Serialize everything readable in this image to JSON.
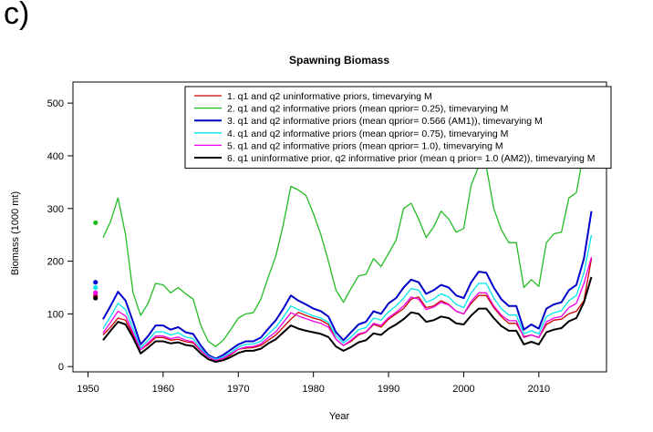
{
  "panel_label": "c)",
  "chart_data": {
    "type": "line",
    "title": "Spawning Biomass",
    "xlabel": "Year",
    "ylabel": "Biomass (1000 mt)",
    "xlim": [
      1948,
      2019
    ],
    "ylim": [
      -10,
      540
    ],
    "xticks": [
      1950,
      1960,
      1970,
      1980,
      1990,
      2000,
      2010
    ],
    "yticks": [
      0,
      100,
      200,
      300,
      400,
      500
    ],
    "grid": false,
    "legend_position": "top-right",
    "x": [
      1951,
      1952,
      1953,
      1954,
      1955,
      1956,
      1957,
      1958,
      1959,
      1960,
      1961,
      1962,
      1963,
      1964,
      1965,
      1966,
      1967,
      1968,
      1969,
      1970,
      1971,
      1972,
      1973,
      1974,
      1975,
      1976,
      1977,
      1978,
      1979,
      1980,
      1981,
      1982,
      1983,
      1984,
      1985,
      1986,
      1987,
      1988,
      1989,
      1990,
      1991,
      1992,
      1993,
      1994,
      1995,
      1996,
      1997,
      1998,
      1999,
      2000,
      2001,
      2002,
      2003,
      2004,
      2005,
      2006,
      2007,
      2008,
      2009,
      2010,
      2011,
      2012,
      2013,
      2014,
      2015,
      2016,
      2017
    ],
    "series": [
      {
        "name": "1. q1 and q2 uninformative priors, timevarying M",
        "color": "#cc0000",
        "line_width": 1.3,
        "start_point": 134,
        "values": [
          58,
          60,
          75,
          92,
          88,
          60,
          32,
          42,
          55,
          55,
          50,
          52,
          47,
          45,
          30,
          18,
          12,
          15,
          22,
          33,
          35,
          36,
          40,
          50,
          60,
          75,
          90,
          103,
          97,
          92,
          88,
          80,
          52,
          40,
          48,
          60,
          65,
          80,
          75,
          90,
          100,
          110,
          128,
          132,
          112,
          115,
          125,
          118,
          105,
          100,
          120,
          135,
          135,
          112,
          95,
          82,
          82,
          57,
          60,
          55,
          80,
          88,
          90,
          100,
          105,
          125,
          205
        ]
      },
      {
        "name": "2. q1 and q2 informative priors (mean qprior= 0.25), timevarying M",
        "color": "#22bb22",
        "line_width": 1.3,
        "start_point": 273,
        "values": [
          200,
          245,
          275,
          320,
          250,
          140,
          97,
          120,
          158,
          155,
          140,
          150,
          138,
          128,
          78,
          48,
          38,
          50,
          70,
          92,
          100,
          102,
          128,
          170,
          210,
          270,
          342,
          335,
          325,
          290,
          250,
          200,
          145,
          122,
          148,
          172,
          175,
          205,
          190,
          215,
          240,
          300,
          310,
          280,
          245,
          265,
          295,
          280,
          255,
          262,
          345,
          380,
          380,
          300,
          260,
          235,
          235,
          150,
          165,
          152,
          235,
          252,
          255,
          320,
          330,
          410,
          415
        ]
      },
      {
        "name": "3. q1 and q2 informative priors (mean qprior= 0.566 (AM1)), timevarying M",
        "color": "#0000cc",
        "line_width": 2,
        "start_point": 160,
        "values": [
          80,
          90,
          115,
          142,
          125,
          85,
          42,
          58,
          78,
          78,
          70,
          75,
          65,
          62,
          40,
          22,
          15,
          22,
          32,
          42,
          48,
          48,
          55,
          72,
          88,
          110,
          135,
          125,
          118,
          110,
          105,
          95,
          65,
          50,
          65,
          80,
          85,
          105,
          100,
          120,
          130,
          150,
          165,
          160,
          138,
          145,
          155,
          150,
          135,
          130,
          160,
          180,
          178,
          150,
          128,
          115,
          115,
          70,
          80,
          72,
          110,
          118,
          122,
          145,
          155,
          205,
          295
        ]
      },
      {
        "name": "4. q1 and q2 informative priors (mean qprior= 0.75), timevarying M",
        "color": "#00e5ee",
        "line_width": 1.3,
        "start_point": 150,
        "values": [
          68,
          72,
          95,
          120,
          108,
          72,
          36,
          50,
          66,
          66,
          60,
          64,
          56,
          53,
          34,
          20,
          14,
          18,
          27,
          37,
          42,
          43,
          48,
          62,
          75,
          94,
          115,
          108,
          102,
          96,
          92,
          84,
          58,
          45,
          56,
          70,
          74,
          92,
          88,
          104,
          115,
          130,
          148,
          145,
          122,
          128,
          138,
          132,
          118,
          112,
          140,
          158,
          158,
          130,
          110,
          98,
          98,
          62,
          68,
          62,
          95,
          102,
          106,
          125,
          135,
          178,
          250
        ]
      },
      {
        "name": "5. q1 and q2 informative priors (mean qprior= 1.0), timevarying M",
        "color": "#ee00ee",
        "line_width": 1.3,
        "start_point": 140,
        "values": [
          60,
          64,
          84,
          105,
          96,
          64,
          32,
          45,
          58,
          58,
          53,
          56,
          50,
          47,
          31,
          18,
          12,
          16,
          24,
          33,
          37,
          38,
          43,
          55,
          66,
          84,
          102,
          96,
          91,
          86,
          82,
          75,
          52,
          40,
          50,
          62,
          66,
          82,
          78,
          93,
          103,
          115,
          132,
          128,
          108,
          113,
          122,
          117,
          105,
          100,
          124,
          140,
          140,
          115,
          98,
          87,
          87,
          55,
          60,
          55,
          85,
          92,
          95,
          112,
          120,
          158,
          208
        ]
      },
      {
        "name": "6. q1 uninformative prior, q2 informative prior (mean q prior= 1.0 (AM2)), timevarying M",
        "color": "#000000",
        "line_width": 2,
        "start_point": 130,
        "values": [
          48,
          50,
          68,
          85,
          80,
          55,
          25,
          36,
          48,
          48,
          44,
          46,
          41,
          39,
          25,
          14,
          9,
          12,
          18,
          26,
          30,
          30,
          34,
          44,
          52,
          65,
          78,
          72,
          68,
          65,
          62,
          56,
          38,
          30,
          37,
          46,
          50,
          63,
          60,
          72,
          80,
          90,
          103,
          100,
          85,
          88,
          95,
          92,
          82,
          80,
          97,
          110,
          110,
          92,
          77,
          68,
          68,
          42,
          47,
          42,
          65,
          70,
          73,
          86,
          92,
          122,
          170
        ]
      }
    ]
  }
}
